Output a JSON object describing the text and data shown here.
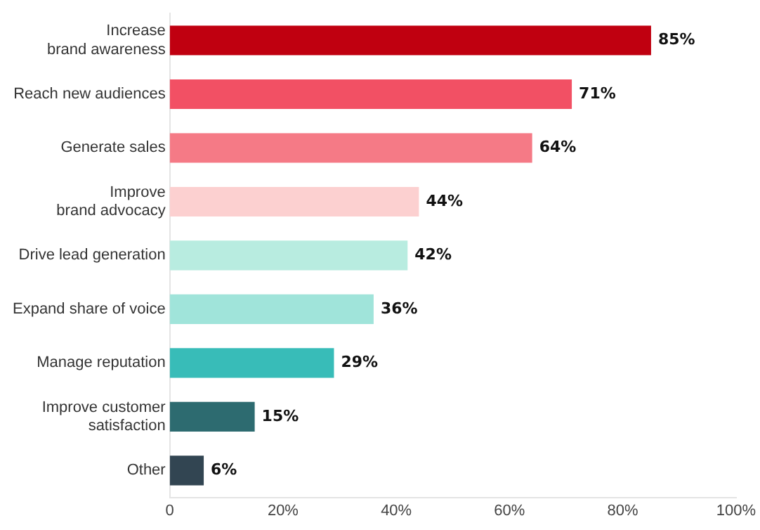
{
  "chart_data": {
    "type": "bar",
    "orientation": "horizontal",
    "categories": [
      "Increase\nbrand awareness",
      "Reach new audiences",
      "Generate sales",
      "Improve\nbrand advocacy",
      "Drive lead generation",
      "Expand share of voice",
      "Manage reputation",
      "Improve customer\nsatisfaction",
      "Other"
    ],
    "values": [
      85,
      71,
      64,
      44,
      42,
      36,
      29,
      15,
      6
    ],
    "colors": [
      "#c00010",
      "#f25064",
      "#f57a86",
      "#fcd0d0",
      "#b8ece0",
      "#a0e4da",
      "#38bcb8",
      "#2d6b70",
      "#324552"
    ],
    "value_labels": [
      "85%",
      "71%",
      "64%",
      "44%",
      "42%",
      "36%",
      "29%",
      "15%",
      "6%"
    ],
    "xlim": [
      0,
      100
    ],
    "xticks": [
      0,
      {
        "value": 20,
        "label": "20%"
      },
      {
        "value": 40,
        "label": "40%"
      },
      {
        "value": 60,
        "label": "60%"
      },
      {
        "value": 80,
        "label": "80%"
      },
      {
        "value": 100,
        "label": "100%"
      }
    ],
    "grid": false,
    "legend": false
  }
}
